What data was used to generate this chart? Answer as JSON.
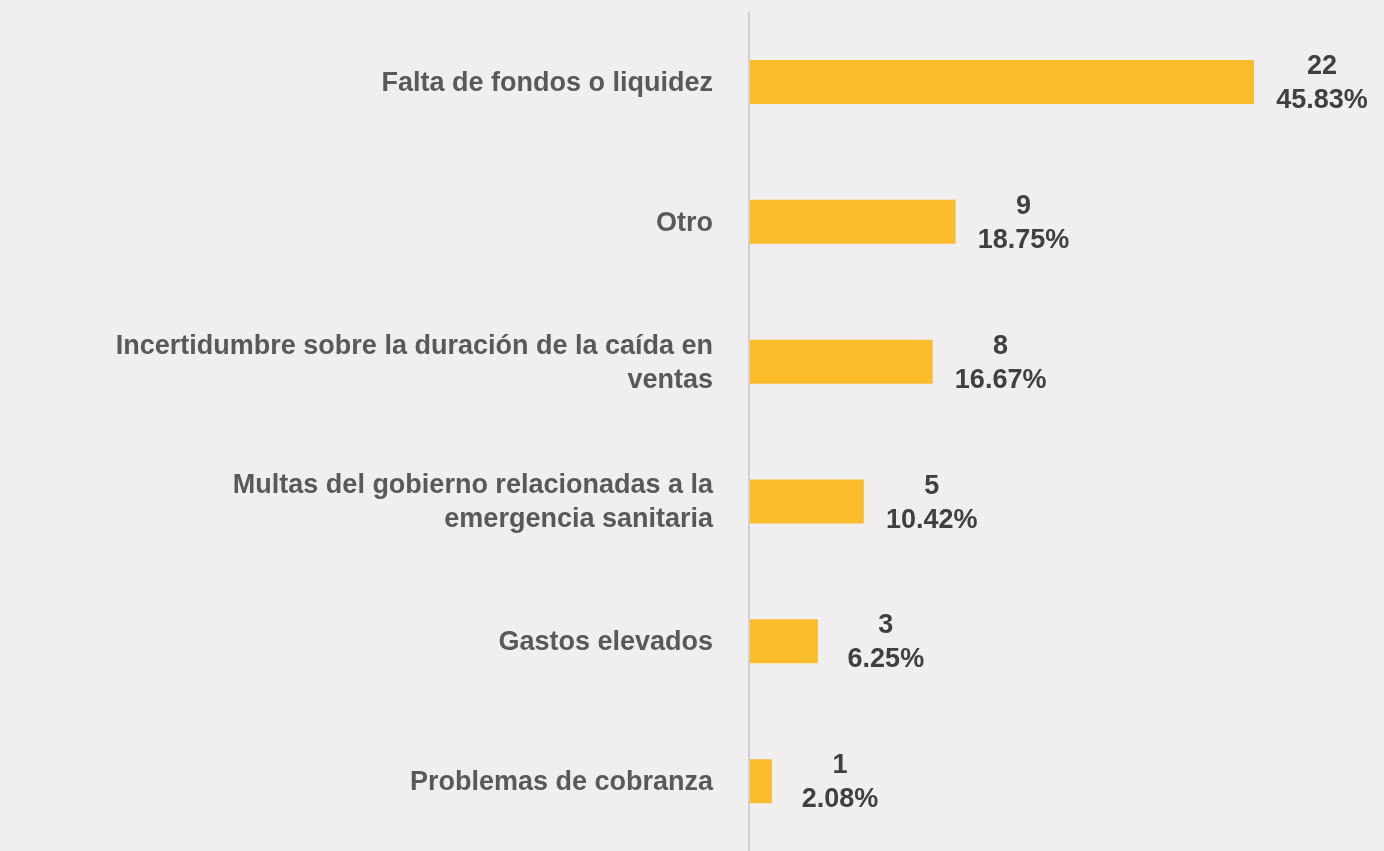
{
  "chart_data": {
    "type": "bar",
    "orientation": "horizontal",
    "categories": [
      "Falta de fondos o liquidez",
      "Otro",
      "Incertidumbre sobre la duración de la caída en ventas",
      "Multas del gobierno relacionadas a la emergencia sanitaria",
      "Gastos elevados",
      "Problemas de cobranza"
    ],
    "values": [
      22,
      9,
      8,
      5,
      3,
      1
    ],
    "value_labels": [
      "22\n45.83%",
      "9\n18.75%",
      "8\n16.67%",
      "5\n10.42%",
      "3\n6.25%",
      "1\n2.08%"
    ],
    "color": "#fbbc2b"
  }
}
